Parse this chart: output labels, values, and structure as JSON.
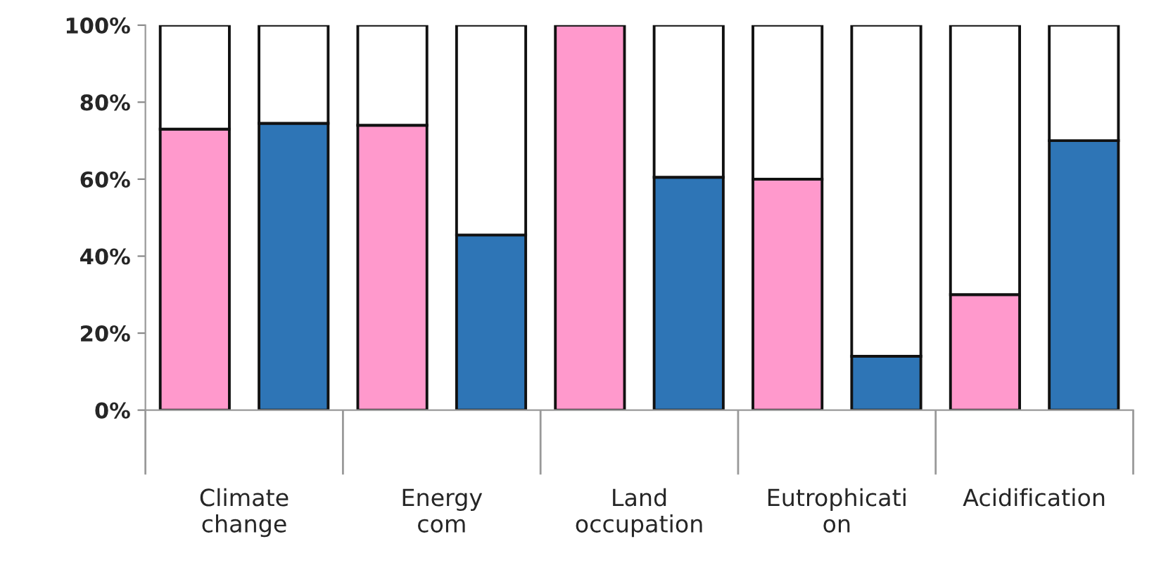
{
  "chart_data": {
    "type": "bar",
    "stacked": true,
    "categories": [
      "Climate\nchange",
      null,
      "Energy\ncom",
      null,
      "Land\noccupation",
      null,
      "Eutrophicati\non",
      null,
      "Acidification",
      null
    ],
    "series": [
      {
        "colors": [
          "#ff99cc",
          "#2e75b6",
          "#ff99cc",
          "#2e75b6",
          "#ff99cc",
          "#2e75b6",
          "#ff99cc",
          "#2e75b6",
          "#ff99cc",
          "#2e75b6"
        ],
        "values": [
          73,
          74.5,
          74,
          45.5,
          100,
          60.5,
          60,
          14,
          30,
          70
        ]
      },
      {
        "color": "#ffffff",
        "values": [
          27,
          25.5,
          26,
          54.5,
          0,
          39.5,
          40,
          86,
          70,
          30
        ]
      }
    ],
    "ylim": [
      0,
      100
    ],
    "yticks": [
      {
        "value": 0,
        "label": "0%"
      },
      {
        "value": 20,
        "label": "20%"
      },
      {
        "value": 40,
        "label": "40%"
      },
      {
        "value": 60,
        "label": "60%"
      },
      {
        "value": 80,
        "label": "80%"
      },
      {
        "value": 100,
        "label": "100%"
      }
    ],
    "grid": false,
    "legend": false
  }
}
